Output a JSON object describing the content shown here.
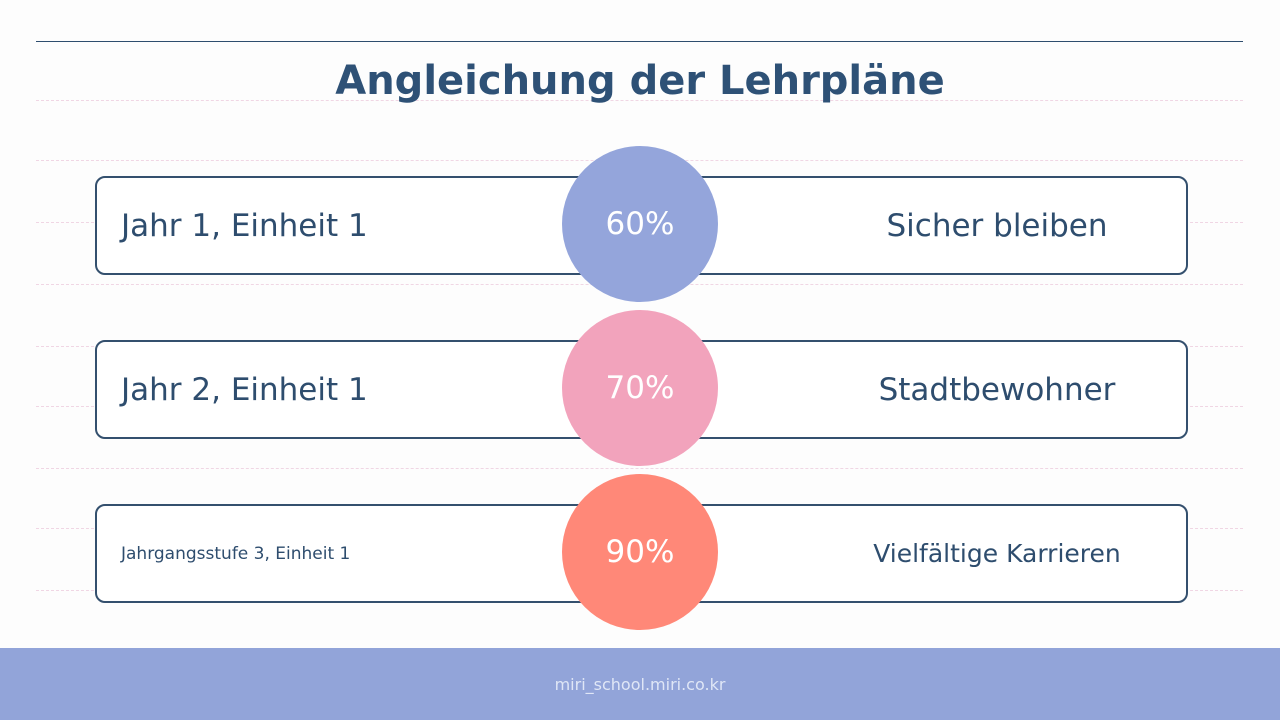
{
  "title": "Angleichung der Lehrpläne",
  "rows": [
    {
      "left": "Jahr 1, Einheit 1",
      "percent": "60%",
      "right": "Sicher bleiben",
      "color": "#94a5db"
    },
    {
      "left": "Jahr 2, Einheit 1",
      "percent": "70%",
      "right": "Stadtbewohner",
      "color": "#f2a3bc"
    },
    {
      "left": "Jahrgangsstufe 3, Einheit 1",
      "percent": "90%",
      "right": "Vielfältige Karrieren",
      "color": "#ff8878"
    }
  ],
  "footer": "miri_school.miri.co.kr"
}
